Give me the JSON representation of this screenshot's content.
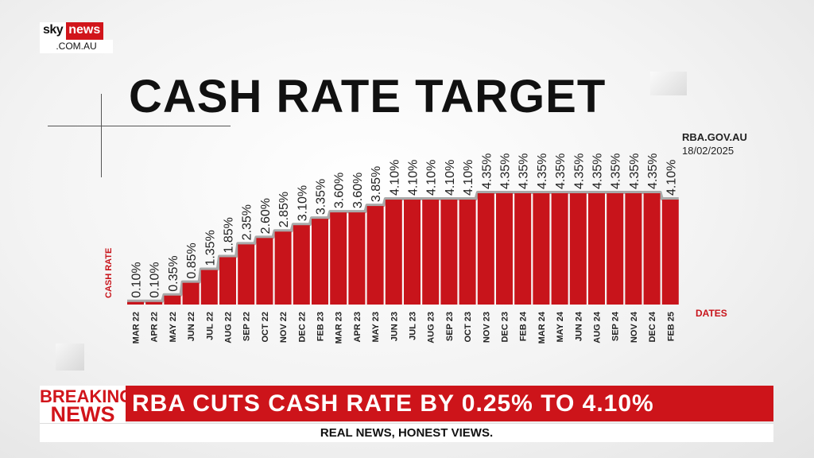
{
  "branding": {
    "logo_sky": "sky",
    "logo_news": "news",
    "logo_domain": ".COM.AU",
    "brand_red": "#d1151b"
  },
  "title": "CASH RATE TARGET",
  "source": {
    "site": "RBA.GOV.AU",
    "date": "18/02/2025"
  },
  "chart_data": {
    "type": "bar",
    "title": "CASH RATE TARGET",
    "ylabel": "CASH RATE",
    "xlabel": "DATES",
    "categories": [
      "MAR 22",
      "APR 22",
      "MAY 22",
      "JUN 22",
      "JUL 22",
      "AUG 22",
      "SEP 22",
      "OCT 22",
      "NOV 22",
      "DEC 22",
      "FEB 23",
      "MAR 23",
      "APR 23",
      "MAY 23",
      "JUN 23",
      "JUL 23",
      "AUG 23",
      "SEP 23",
      "OCT 23",
      "NOV 23",
      "DEC 23",
      "FEB 24",
      "MAR 24",
      "MAY 24",
      "JUN 24",
      "AUG 24",
      "SEP 24",
      "NOV 24",
      "DEC 24",
      "FEB 25"
    ],
    "values": [
      0.1,
      0.1,
      0.35,
      0.85,
      1.35,
      1.85,
      2.35,
      2.6,
      2.85,
      3.1,
      3.35,
      3.6,
      3.6,
      3.85,
      4.1,
      4.1,
      4.1,
      4.1,
      4.1,
      4.35,
      4.35,
      4.35,
      4.35,
      4.35,
      4.35,
      4.35,
      4.35,
      4.35,
      4.35,
      4.1
    ],
    "value_labels": [
      "0.10%",
      "0.10%",
      "0.35%",
      "0.85%",
      "1.35%",
      "1.85%",
      "2.35%",
      "2.60%",
      "2.85%",
      "3.10%",
      "3.35%",
      "3.60%",
      "3.60%",
      "3.85%",
      "4.10%",
      "4.10%",
      "4.10%",
      "4.10%",
      "4.10%",
      "4.35%",
      "4.35%",
      "4.35%",
      "4.35%",
      "4.35%",
      "4.35%",
      "4.35%",
      "4.35%",
      "4.35%",
      "4.35%",
      "4.10%"
    ],
    "ylim": [
      0,
      4.35
    ],
    "grid": false,
    "bar_color": "#c8141b"
  },
  "ticker": {
    "breaking_line1": "BREAKING",
    "breaking_line2": "NEWS",
    "headline": "RBA CUTS CASH RATE BY 0.25% TO 4.10%",
    "tagline": "REAL NEWS, HONEST VIEWS."
  }
}
